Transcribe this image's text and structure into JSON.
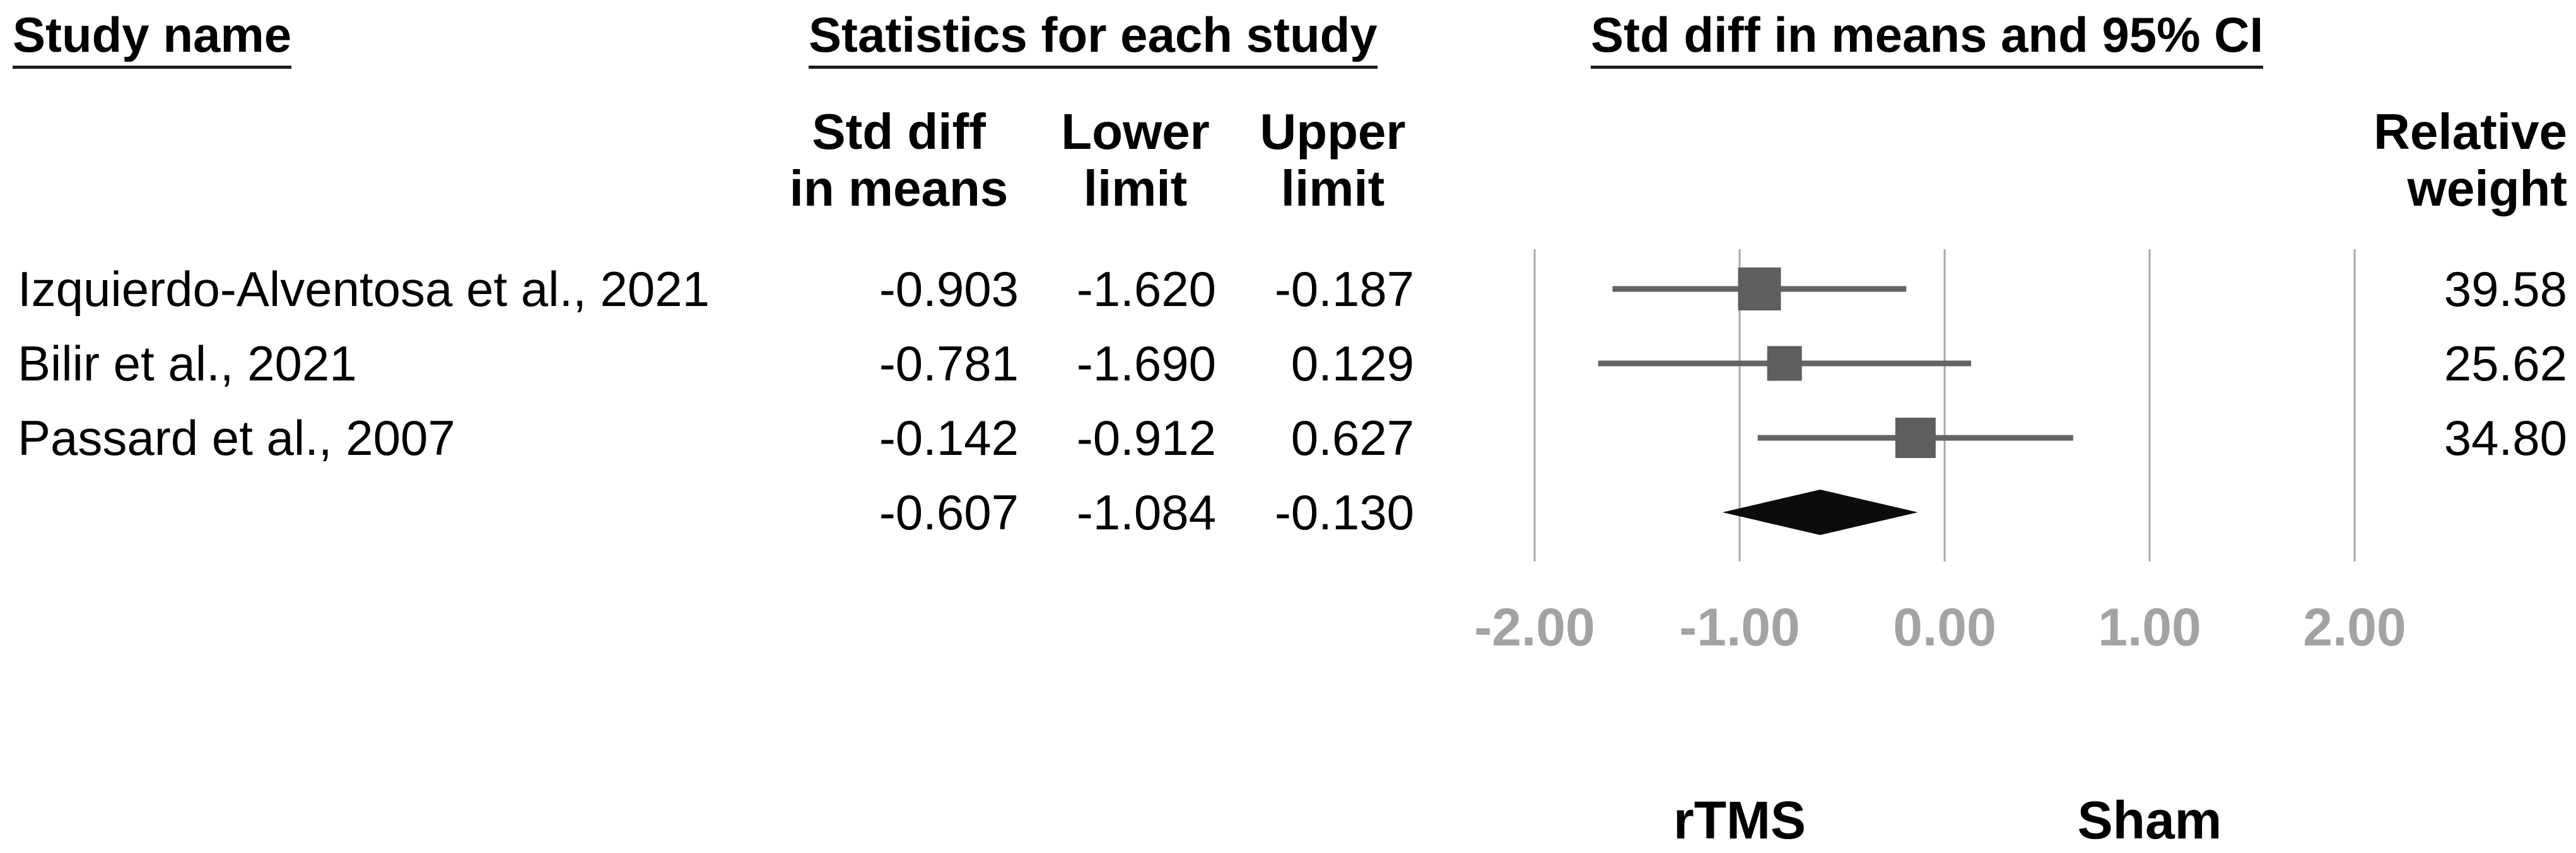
{
  "figure": {
    "group_headers": {
      "study_name": "Study name",
      "statistics": "Statistics for each study",
      "plot": "Std diff in means and 95% CI"
    },
    "columns": {
      "std_diff": "Std diff\nin means",
      "lower": "Lower\nlimit",
      "upper": "Upper\nlimit",
      "relative_weight": "Relative\nweight"
    },
    "footer": {
      "left_label": "rTMS",
      "right_label": "Sham"
    }
  },
  "chart_data": {
    "type": "forest",
    "title": "Std diff in means and 95% CI",
    "effect_measure": "Std diff in means",
    "studies": [
      {
        "name": "Izquierdo-Alventosa et al., 2021",
        "std_diff": -0.903,
        "lower": -1.62,
        "upper": -0.187,
        "relative_weight": 39.58
      },
      {
        "name": "Bilir et al., 2021",
        "std_diff": -0.781,
        "lower": -1.69,
        "upper": 0.129,
        "relative_weight": 25.62
      },
      {
        "name": "Passard et al., 2007",
        "std_diff": -0.142,
        "lower": -0.912,
        "upper": 0.627,
        "relative_weight": 34.8
      }
    ],
    "summary": {
      "std_diff": -0.607,
      "lower": -1.084,
      "upper": -0.13
    },
    "axis": {
      "ticks": [
        -2,
        -1,
        0,
        1,
        2
      ],
      "tick_labels": [
        "-2.00",
        "-1.00",
        "0.00",
        "1.00",
        "2.00"
      ],
      "xlim": [
        -2.3,
        2.3
      ],
      "grid": true
    },
    "legend": {
      "left": "rTMS",
      "right": "Sham"
    },
    "colors": {
      "marker": "#5e5e5e",
      "ci_line": "#636363",
      "diamond": "#0c0c0c",
      "gridline": "#a9a9a9",
      "axis_label": "#a3a3a3",
      "text": "#000000"
    }
  }
}
